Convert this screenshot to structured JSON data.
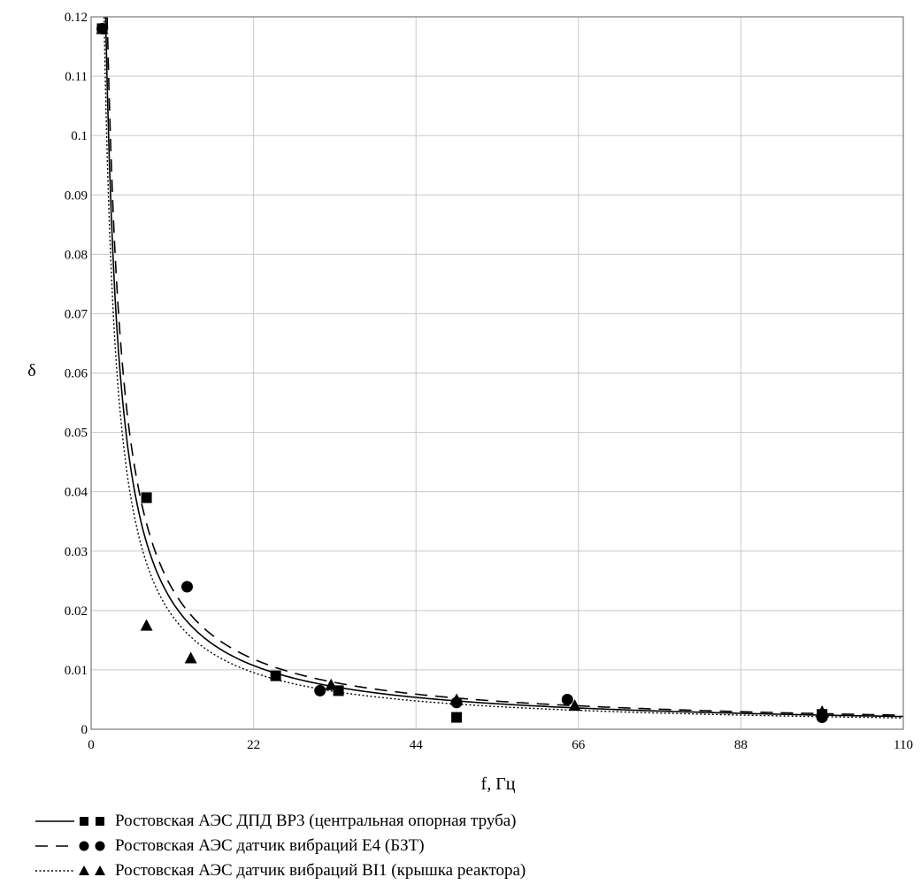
{
  "chart_data": {
    "type": "scatter",
    "xlabel": "f, Гц",
    "ylabel": "δ",
    "xlim": [
      0,
      110
    ],
    "ylim": [
      0,
      0.12
    ],
    "x_ticks": [
      "0",
      "22",
      "44",
      "66",
      "88",
      "110"
    ],
    "y_ticks": [
      "0",
      "0.01",
      "0.02",
      "0.03",
      "0.04",
      "0.05",
      "0.06",
      "0.07",
      "0.08",
      "0.09",
      "0.1",
      "0.11",
      "0.12"
    ],
    "grid": true,
    "legend_position": "bottom",
    "series": [
      {
        "name": "Ростовская АЭС ДПД ВР3 (центральная опорная труба)",
        "marker": "square",
        "line_style": "solid",
        "fit_coefficient": 0.236,
        "points": [
          [
            1.5,
            0.118
          ],
          [
            7.5,
            0.039
          ],
          [
            25,
            0.009
          ],
          [
            33.5,
            0.0065
          ],
          [
            49.5,
            0.002
          ],
          [
            99,
            0.0025
          ]
        ]
      },
      {
        "name": "Ростовская АЭС датчик вибраций Е4 (БЗТ)",
        "marker": "circle",
        "line_style": "dashed",
        "fit_coefficient": 0.26,
        "points": [
          [
            1.5,
            0.118
          ],
          [
            13,
            0.024
          ],
          [
            31,
            0.0065
          ],
          [
            49.5,
            0.0045
          ],
          [
            64.5,
            0.005
          ],
          [
            99,
            0.002
          ]
        ]
      },
      {
        "name": "Ростовская АЭС датчик вибраций ВI1 (крышка реактора)",
        "marker": "triangle",
        "line_style": "dotted",
        "fit_coefficient": 0.21,
        "points": [
          [
            1.5,
            0.118
          ],
          [
            7.5,
            0.0175
          ],
          [
            13.5,
            0.012
          ],
          [
            32.5,
            0.0075
          ],
          [
            49.5,
            0.005
          ],
          [
            65.5,
            0.004
          ],
          [
            99,
            0.003
          ]
        ]
      }
    ]
  }
}
